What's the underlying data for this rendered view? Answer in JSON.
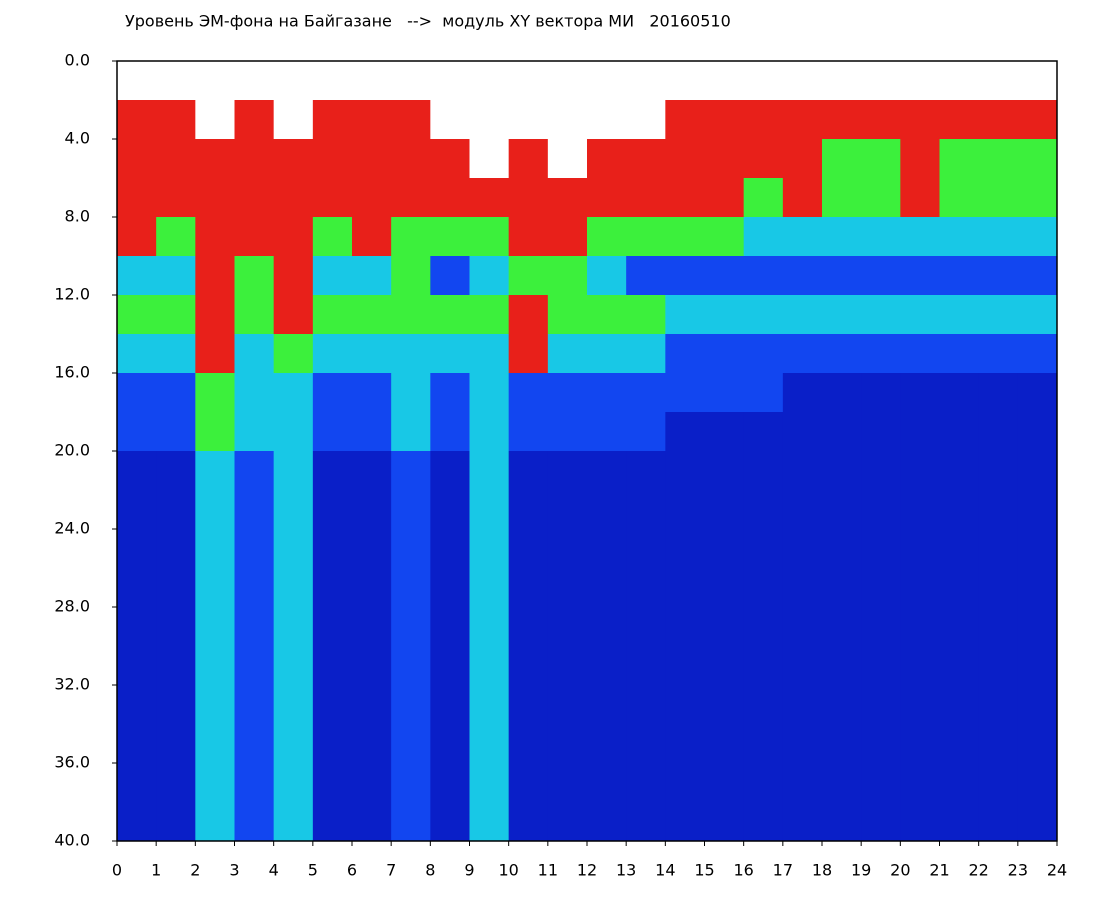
{
  "chart_data": {
    "type": "heatmap",
    "title": "Уровень ЭМ-фона на Байгазане   -->  модуль XY вектора МИ   20160510",
    "xlim": [
      0,
      24
    ],
    "ylim": [
      0,
      40
    ],
    "y_inverted": true,
    "xticks": [
      0,
      1,
      2,
      3,
      4,
      5,
      6,
      7,
      8,
      9,
      10,
      11,
      12,
      13,
      14,
      15,
      16,
      17,
      18,
      19,
      20,
      21,
      22,
      23,
      24
    ],
    "yticks": [
      {
        "value": 0,
        "label": "0.0"
      },
      {
        "value": 4,
        "label": "4.0"
      },
      {
        "value": 8,
        "label": "8.0"
      },
      {
        "value": 12,
        "label": "12.0"
      },
      {
        "value": 16,
        "label": "16.0"
      },
      {
        "value": 20,
        "label": "20.0"
      },
      {
        "value": 24,
        "label": "24.0"
      },
      {
        "value": 28,
        "label": "28.0"
      },
      {
        "value": 32,
        "label": "32.0"
      },
      {
        "value": 36,
        "label": "36.0"
      },
      {
        "value": 40,
        "label": "40.0"
      }
    ],
    "xbins": [
      0,
      1,
      2,
      3,
      4,
      5,
      6,
      7,
      8,
      9,
      10,
      11,
      12,
      13,
      14,
      15,
      16,
      17,
      18,
      19,
      20,
      21,
      22,
      23,
      24
    ],
    "ybins": [
      0,
      2,
      4,
      6,
      8,
      10,
      12,
      14,
      16,
      18,
      20,
      22,
      24,
      26,
      28,
      30,
      32,
      34,
      36,
      38,
      40
    ],
    "colors": [
      "#ffffff",
      "#0a1fc8",
      "#1246f0",
      "#18c8e6",
      "#3cf03c",
      "#e8201a"
    ],
    "z": [
      [
        0,
        0,
        0,
        0,
        0,
        0,
        0,
        0,
        0,
        0,
        0,
        0,
        0,
        0,
        0,
        0,
        0,
        0,
        0,
        0,
        0,
        0,
        0,
        0
      ],
      [
        5,
        5,
        0,
        5,
        0,
        5,
        5,
        5,
        0,
        0,
        0,
        0,
        0,
        0,
        5,
        5,
        5,
        5,
        5,
        5,
        5,
        5,
        5,
        5
      ],
      [
        5,
        5,
        5,
        5,
        5,
        5,
        5,
        5,
        5,
        0,
        5,
        0,
        5,
        5,
        5,
        5,
        5,
        5,
        4,
        4,
        5,
        4,
        4,
        4
      ],
      [
        5,
        5,
        5,
        5,
        5,
        5,
        5,
        5,
        5,
        5,
        5,
        5,
        5,
        5,
        5,
        5,
        4,
        5,
        4,
        4,
        5,
        4,
        4,
        4
      ],
      [
        5,
        4,
        5,
        5,
        5,
        4,
        5,
        4,
        4,
        4,
        5,
        5,
        4,
        4,
        4,
        4,
        3,
        3,
        3,
        3,
        3,
        3,
        3,
        3
      ],
      [
        3,
        3,
        5,
        4,
        5,
        3,
        3,
        4,
        2,
        3,
        4,
        4,
        3,
        2,
        2,
        2,
        2,
        2,
        2,
        2,
        2,
        2,
        2,
        2
      ],
      [
        4,
        4,
        5,
        4,
        5,
        4,
        4,
        4,
        4,
        4,
        5,
        4,
        4,
        4,
        3,
        3,
        3,
        3,
        3,
        3,
        3,
        3,
        3,
        3
      ],
      [
        3,
        3,
        5,
        3,
        4,
        3,
        3,
        3,
        3,
        3,
        5,
        3,
        3,
        3,
        2,
        2,
        2,
        2,
        2,
        2,
        2,
        2,
        2,
        2
      ],
      [
        2,
        2,
        4,
        3,
        3,
        2,
        2,
        3,
        2,
        3,
        2,
        2,
        2,
        2,
        2,
        2,
        2,
        1,
        1,
        1,
        1,
        1,
        1,
        1
      ],
      [
        2,
        2,
        4,
        3,
        3,
        2,
        2,
        3,
        2,
        3,
        2,
        2,
        2,
        2,
        1,
        1,
        1,
        1,
        1,
        1,
        1,
        1,
        1,
        1
      ],
      [
        1,
        1,
        3,
        2,
        3,
        1,
        1,
        2,
        1,
        3,
        1,
        1,
        1,
        1,
        1,
        1,
        1,
        1,
        1,
        1,
        1,
        1,
        1,
        1
      ],
      [
        1,
        1,
        3,
        2,
        3,
        1,
        1,
        2,
        1,
        3,
        1,
        1,
        1,
        1,
        1,
        1,
        1,
        1,
        1,
        1,
        1,
        1,
        1,
        1
      ],
      [
        1,
        1,
        3,
        2,
        3,
        1,
        1,
        2,
        1,
        3,
        1,
        1,
        1,
        1,
        1,
        1,
        1,
        1,
        1,
        1,
        1,
        1,
        1,
        1
      ],
      [
        1,
        1,
        3,
        2,
        3,
        1,
        1,
        2,
        1,
        3,
        1,
        1,
        1,
        1,
        1,
        1,
        1,
        1,
        1,
        1,
        1,
        1,
        1,
        1
      ],
      [
        1,
        1,
        3,
        2,
        3,
        1,
        1,
        2,
        1,
        3,
        1,
        1,
        1,
        1,
        1,
        1,
        1,
        1,
        1,
        1,
        1,
        1,
        1,
        1
      ],
      [
        1,
        1,
        3,
        2,
        3,
        1,
        1,
        2,
        1,
        3,
        1,
        1,
        1,
        1,
        1,
        1,
        1,
        1,
        1,
        1,
        1,
        1,
        1,
        1
      ],
      [
        1,
        1,
        3,
        2,
        3,
        1,
        1,
        2,
        1,
        3,
        1,
        1,
        1,
        1,
        1,
        1,
        1,
        1,
        1,
        1,
        1,
        1,
        1,
        1
      ],
      [
        1,
        1,
        3,
        2,
        3,
        1,
        1,
        2,
        1,
        3,
        1,
        1,
        1,
        1,
        1,
        1,
        1,
        1,
        1,
        1,
        1,
        1,
        1,
        1
      ],
      [
        1,
        1,
        3,
        2,
        3,
        1,
        1,
        2,
        1,
        3,
        1,
        1,
        1,
        1,
        1,
        1,
        1,
        1,
        1,
        1,
        1,
        1,
        1,
        1
      ],
      [
        1,
        1,
        3,
        2,
        3,
        1,
        1,
        2,
        1,
        3,
        1,
        1,
        1,
        1,
        1,
        1,
        1,
        1,
        1,
        1,
        1,
        1,
        1,
        1
      ]
    ]
  }
}
